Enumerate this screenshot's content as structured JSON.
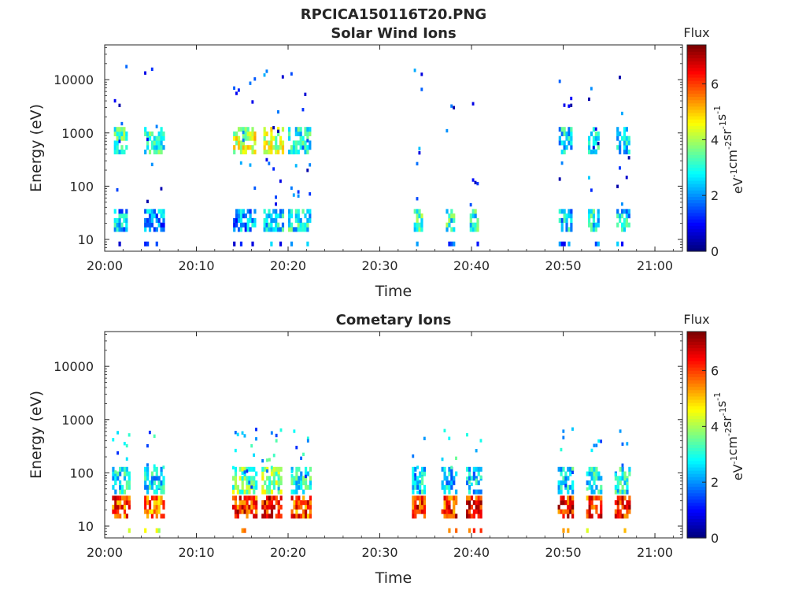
{
  "figure": {
    "title": "RPCICA150116T20.PNG"
  },
  "chart_data": [
    {
      "type": "heatmap",
      "title": "Solar Wind Ions",
      "xlabel": "Time",
      "ylabel": "Energy (eV)",
      "x_ticks": [
        "20:00",
        "20:10",
        "20:20",
        "20:30",
        "20:40",
        "20:50",
        "21:00"
      ],
      "x_range_minutes": [
        0,
        63
      ],
      "y_scale": "log",
      "y_ticks": [
        "10",
        "100",
        "1000",
        "10000"
      ],
      "y_range": [
        6,
        45000
      ],
      "grid": false,
      "colorbar": {
        "label": "Flux",
        "unit": "eV-1cm-2sr-1s-1",
        "ticks": [
          "0",
          "2",
          "4",
          "6"
        ],
        "range": [
          0,
          7.4
        ],
        "colormap": "jet"
      },
      "bursts": [
        {
          "t_start": 1.0,
          "t_end": 2.3,
          "flux_low": 2.3,
          "flux_mid": 3.2
        },
        {
          "t_start": 4.3,
          "t_end": 6.5,
          "flux_low": 1.9,
          "flux_mid": 3.0
        },
        {
          "t_start": 14.0,
          "t_end": 16.5,
          "flux_low": 2.0,
          "flux_mid": 4.3
        },
        {
          "t_start": 17.3,
          "t_end": 19.5,
          "flux_low": 2.6,
          "flux_mid": 4.2
        },
        {
          "t_start": 20.0,
          "t_end": 22.3,
          "flux_low": 2.8,
          "flux_mid": 2.9
        },
        {
          "t_start": 33.7,
          "t_end": 34.6,
          "flux_low": 3.2,
          "flux_mid": 0
        },
        {
          "t_start": 37.2,
          "t_end": 38.2,
          "flux_low": 3.0,
          "flux_mid": 0
        },
        {
          "t_start": 39.8,
          "t_end": 40.8,
          "flux_low": 3.0,
          "flux_mid": 0
        },
        {
          "t_start": 49.5,
          "t_end": 51.0,
          "flux_low": 2.5,
          "flux_mid": 2.6
        },
        {
          "t_start": 52.7,
          "t_end": 53.8,
          "flux_low": 2.8,
          "flux_mid": 2.7
        },
        {
          "t_start": 55.8,
          "t_end": 57.2,
          "flux_low": 2.6,
          "flux_mid": 2.5
        }
      ]
    },
    {
      "type": "heatmap",
      "title": "Cometary Ions",
      "xlabel": "Time",
      "ylabel": "Energy (eV)",
      "x_ticks": [
        "20:00",
        "20:10",
        "20:20",
        "20:30",
        "20:40",
        "20:50",
        "21:00"
      ],
      "x_range_minutes": [
        0,
        63
      ],
      "y_scale": "log",
      "y_ticks": [
        "10",
        "100",
        "1000",
        "10000"
      ],
      "y_range": [
        6,
        45000
      ],
      "grid": false,
      "colorbar": {
        "label": "Flux",
        "unit": "eV-1cm-2sr-1s-1",
        "ticks": [
          "0",
          "2",
          "4",
          "6"
        ],
        "range": [
          0,
          7.4
        ],
        "colormap": "jet"
      },
      "bursts": [
        {
          "t_start": 0.8,
          "t_end": 2.6,
          "flux_low": 6.0,
          "flux_mid": 2.8
        },
        {
          "t_start": 4.3,
          "t_end": 6.5,
          "flux_low": 5.6,
          "flux_mid": 2.6
        },
        {
          "t_start": 13.9,
          "t_end": 16.5,
          "flux_low": 6.2,
          "flux_mid": 3.6
        },
        {
          "t_start": 17.1,
          "t_end": 19.3,
          "flux_low": 6.4,
          "flux_mid": 3.8
        },
        {
          "t_start": 20.3,
          "t_end": 22.4,
          "flux_low": 6.0,
          "flux_mid": 2.9
        },
        {
          "t_start": 33.5,
          "t_end": 35.0,
          "flux_low": 6.3,
          "flux_mid": 2.6
        },
        {
          "t_start": 36.7,
          "t_end": 38.3,
          "flux_low": 6.1,
          "flux_mid": 2.5
        },
        {
          "t_start": 39.4,
          "t_end": 41.0,
          "flux_low": 6.4,
          "flux_mid": 2.4
        },
        {
          "t_start": 49.4,
          "t_end": 51.0,
          "flux_low": 6.3,
          "flux_mid": 2.7
        },
        {
          "t_start": 52.5,
          "t_end": 54.1,
          "flux_low": 6.1,
          "flux_mid": 2.8
        },
        {
          "t_start": 55.6,
          "t_end": 57.2,
          "flux_low": 6.3,
          "flux_mid": 2.8
        }
      ]
    }
  ]
}
